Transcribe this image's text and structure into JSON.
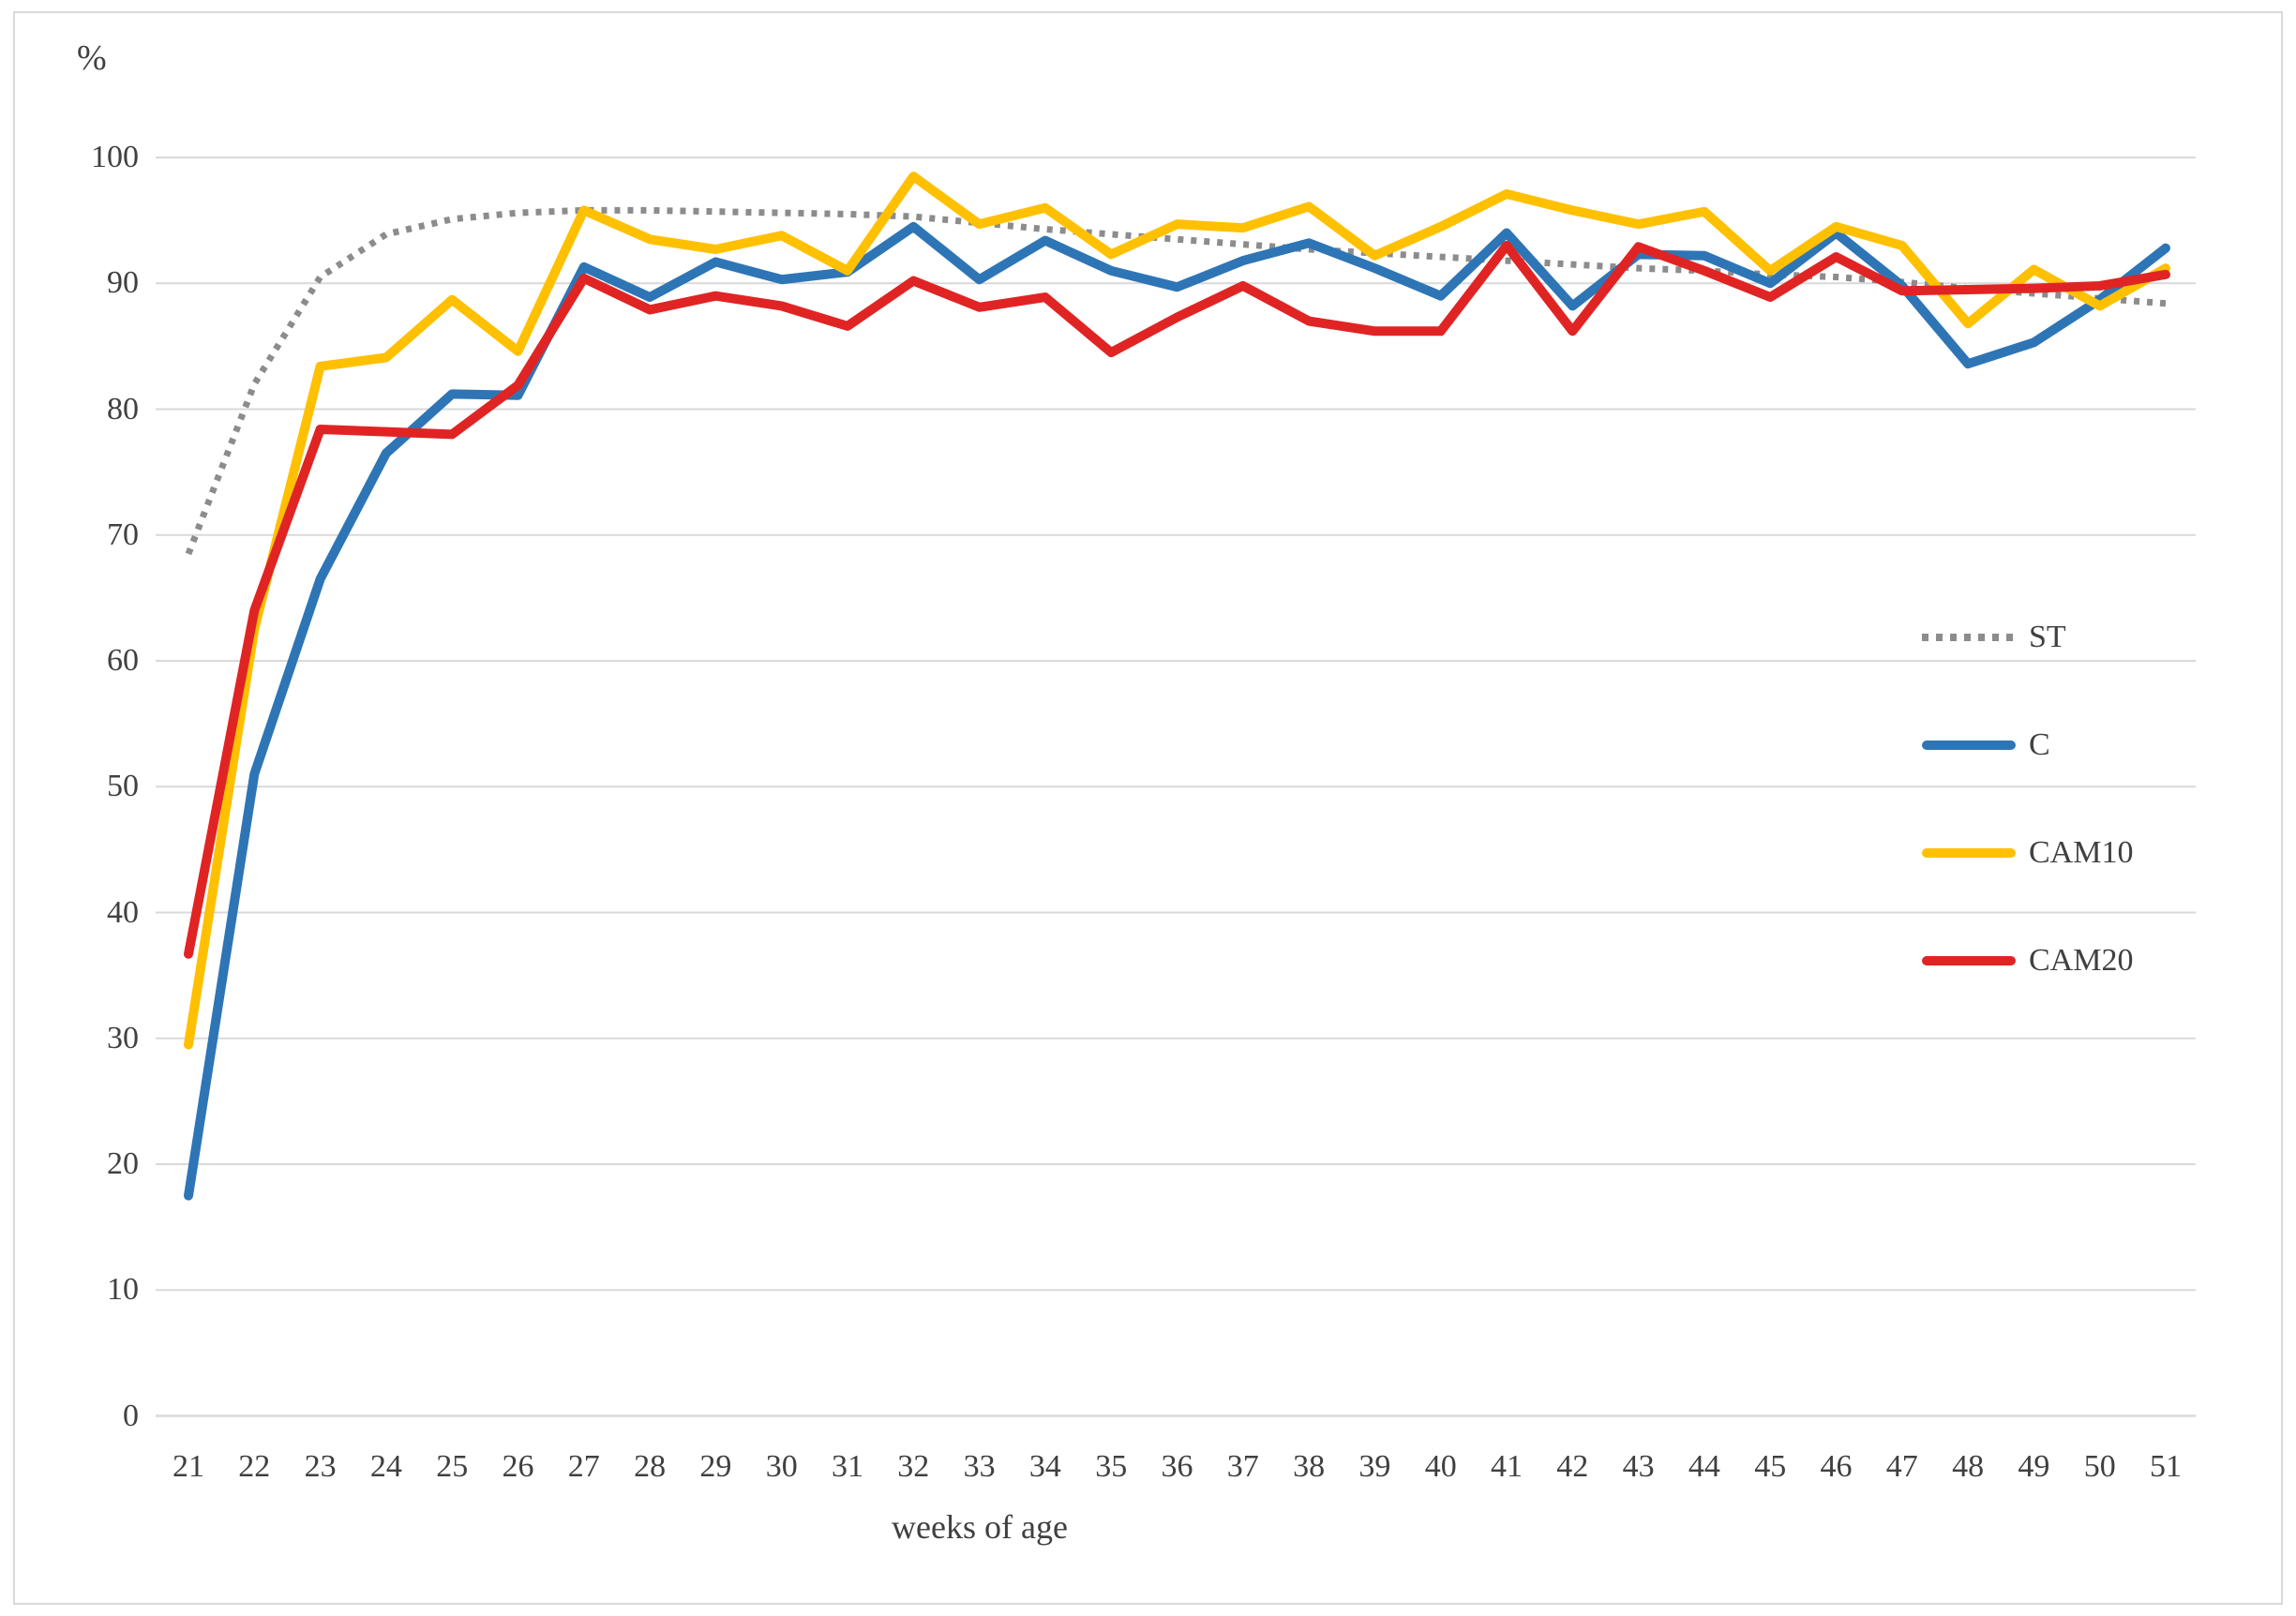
{
  "figure": {
    "y_axis_symbol": "%",
    "x_axis_title": "weeks of age",
    "y_ticks": [
      0,
      10,
      20,
      30,
      40,
      50,
      60,
      70,
      80,
      90,
      100
    ],
    "colors": {
      "grid": "#d9d9d9",
      "text": "#404040",
      "st": "#8c8c8c",
      "c": "#2e75b6",
      "cam10": "#ffc000",
      "cam20": "#e02424"
    }
  },
  "chart_data": {
    "type": "line",
    "title": "",
    "xlabel": "weeks of age",
    "ylabel": "%",
    "ylim": [
      0,
      100
    ],
    "grid": "horizontal",
    "legend_position": "right",
    "x": [
      21,
      22,
      23,
      24,
      25,
      26,
      27,
      28,
      29,
      30,
      31,
      32,
      33,
      34,
      35,
      36,
      37,
      38,
      39,
      40,
      41,
      42,
      43,
      44,
      45,
      46,
      47,
      48,
      49,
      50,
      51
    ],
    "series": [
      {
        "name": "ST",
        "style": "dotted",
        "color": "#8c8c8c",
        "values": [
          68.5,
          82,
          90.5,
          93.9,
          95.1,
          95.6,
          95.8,
          95.8,
          95.7,
          95.6,
          95.5,
          95.3,
          94.8,
          94.3,
          93.9,
          93.5,
          93.1,
          92.7,
          92.4,
          92.1,
          91.8,
          91.5,
          91.2,
          91.0,
          90.7,
          90.5,
          90.1,
          89.6,
          89.2,
          88.8,
          88.4
        ]
      },
      {
        "name": "C",
        "style": "solid",
        "color": "#2e75b6",
        "values": [
          17.5,
          51,
          66.5,
          76.5,
          81.2,
          81.1,
          91.3,
          88.9,
          91.7,
          90.3,
          90.9,
          94.5,
          90.3,
          93.4,
          91.0,
          89.7,
          91.8,
          93.2,
          91.2,
          89.0,
          94.0,
          88.2,
          92.3,
          92.2,
          90.0,
          94.0,
          89.8,
          83.6,
          85.3,
          88.7,
          92.8
        ]
      },
      {
        "name": "CAM10",
        "style": "solid",
        "color": "#ffc000",
        "values": [
          29.5,
          62.5,
          83.4,
          84.1,
          88.7,
          84.6,
          95.8,
          93.5,
          92.7,
          93.8,
          91.0,
          98.5,
          94.7,
          96.0,
          92.3,
          94.7,
          94.4,
          96.1,
          92.2,
          94.5,
          97.1,
          95.8,
          94.7,
          95.7,
          91.0,
          94.5,
          93.0,
          86.8,
          91.1,
          88.2,
          91.2
        ]
      },
      {
        "name": "CAM20",
        "style": "solid",
        "color": "#e02424",
        "values": [
          36.7,
          64,
          78.4,
          78.2,
          78.0,
          81.9,
          90.4,
          87.9,
          89.0,
          88.2,
          86.6,
          90.2,
          88.1,
          88.9,
          84.5,
          87.3,
          89.8,
          87.0,
          86.2,
          86.2,
          93.0,
          86.2,
          92.9,
          91.0,
          88.9,
          92.1,
          89.4,
          89.5,
          89.6,
          89.8,
          90.7
        ]
      }
    ]
  }
}
